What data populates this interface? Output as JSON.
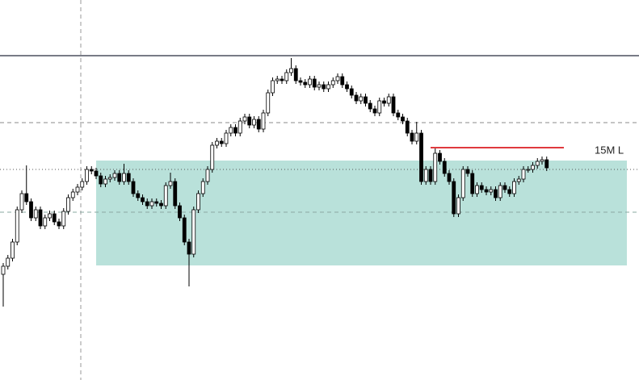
{
  "chart_data": {
    "type": "candlestick",
    "ylim": [
      29,
      500
    ],
    "open": [
      160,
      170,
      180,
      200,
      240,
      260,
      250,
      230,
      240,
      220,
      230,
      235,
      225,
      220,
      238,
      255,
      262,
      268,
      275,
      290,
      288,
      282,
      272,
      278,
      280,
      285,
      275,
      285,
      275,
      260,
      255,
      250,
      245,
      250,
      248,
      245,
      270,
      275,
      245,
      230,
      200,
      185,
      240,
      260,
      275,
      290,
      320,
      325,
      322,
      335,
      342,
      335,
      350,
      355,
      345,
      352,
      340,
      360,
      385,
      400,
      402,
      400,
      410,
      415,
      400,
      398,
      395,
      402,
      392,
      395,
      390,
      395,
      400,
      405,
      395,
      390,
      382,
      375,
      380,
      372,
      365,
      360,
      375,
      372,
      380,
      360,
      355,
      350,
      335,
      325,
      335,
      275,
      290,
      275,
      310,
      300,
      285,
      275,
      235,
      255,
      290,
      285,
      260,
      270,
      265,
      262,
      265,
      255,
      270,
      265,
      260,
      275,
      278,
      290,
      290,
      295,
      300,
      302
    ],
    "high": [
      174,
      184,
      204,
      244,
      264,
      295,
      254,
      244,
      244,
      234,
      239,
      239,
      229,
      242,
      259,
      266,
      272,
      279,
      294,
      294,
      292,
      286,
      282,
      284,
      289,
      289,
      297,
      289,
      279,
      264,
      259,
      254,
      254,
      254,
      252,
      274,
      286,
      279,
      249,
      234,
      204,
      244,
      264,
      279,
      294,
      324,
      329,
      329,
      339,
      346,
      346,
      354,
      359,
      359,
      356,
      356,
      364,
      389,
      404,
      406,
      406,
      414,
      428,
      419,
      404,
      402,
      406,
      406,
      399,
      399,
      399,
      404,
      409,
      409,
      399,
      394,
      386,
      384,
      384,
      376,
      369,
      379,
      379,
      384,
      384,
      364,
      359,
      354,
      339,
      349,
      339,
      294,
      294,
      317,
      314,
      304,
      289,
      279,
      259,
      294,
      294,
      289,
      274,
      274,
      269,
      269,
      269,
      274,
      274,
      269,
      279,
      282,
      294,
      294,
      299,
      304,
      306,
      306
    ],
    "low": [
      120,
      166,
      176,
      196,
      236,
      246,
      226,
      226,
      216,
      216,
      226,
      221,
      216,
      216,
      234,
      251,
      258,
      264,
      271,
      284,
      278,
      268,
      268,
      274,
      276,
      271,
      271,
      271,
      256,
      251,
      246,
      241,
      241,
      244,
      241,
      241,
      266,
      241,
      226,
      196,
      145,
      181,
      236,
      256,
      271,
      286,
      316,
      318,
      318,
      331,
      331,
      331,
      346,
      341,
      341,
      336,
      336,
      356,
      381,
      396,
      396,
      396,
      406,
      396,
      394,
      391,
      391,
      388,
      388,
      386,
      386,
      391,
      396,
      391,
      386,
      378,
      371,
      371,
      368,
      361,
      356,
      356,
      368,
      368,
      356,
      351,
      346,
      331,
      321,
      321,
      271,
      271,
      271,
      271,
      296,
      281,
      271,
      231,
      231,
      251,
      281,
      256,
      256,
      261,
      258,
      258,
      251,
      251,
      261,
      256,
      256,
      271,
      274,
      286,
      286,
      291,
      296,
      288
    ],
    "close": [
      170,
      180,
      200,
      240,
      260,
      250,
      230,
      240,
      220,
      230,
      235,
      225,
      220,
      238,
      255,
      262,
      268,
      275,
      290,
      288,
      282,
      272,
      278,
      280,
      285,
      275,
      285,
      275,
      260,
      255,
      250,
      245,
      250,
      248,
      245,
      270,
      275,
      245,
      230,
      200,
      185,
      240,
      260,
      275,
      290,
      320,
      325,
      322,
      335,
      342,
      335,
      350,
      355,
      345,
      352,
      340,
      360,
      385,
      400,
      402,
      400,
      410,
      415,
      400,
      398,
      395,
      402,
      392,
      395,
      390,
      395,
      400,
      405,
      395,
      390,
      382,
      375,
      380,
      372,
      365,
      360,
      375,
      372,
      380,
      360,
      355,
      350,
      335,
      325,
      335,
      275,
      290,
      275,
      310,
      300,
      285,
      275,
      235,
      255,
      290,
      285,
      260,
      270,
      265,
      262,
      265,
      255,
      270,
      265,
      260,
      275,
      278,
      290,
      290,
      295,
      300,
      302,
      292
    ],
    "up_color": "#ffffff",
    "down_color": "#000000",
    "wick_color": "#000000",
    "zone": {
      "from": 171,
      "to": 301,
      "color": "#b9e1da"
    },
    "levels": [
      {
        "value": 431,
        "style": "solid",
        "color": "#787b86"
      },
      {
        "value": 348,
        "style": "dashed",
        "color": "#888888"
      },
      {
        "value": 290,
        "style": "dotted",
        "color": "#555555"
      },
      {
        "value": 237,
        "style": "dashed",
        "color": "#8aa8a2"
      }
    ],
    "marker": {
      "value": 317,
      "label": "15M L",
      "color": "#e0393e"
    }
  }
}
